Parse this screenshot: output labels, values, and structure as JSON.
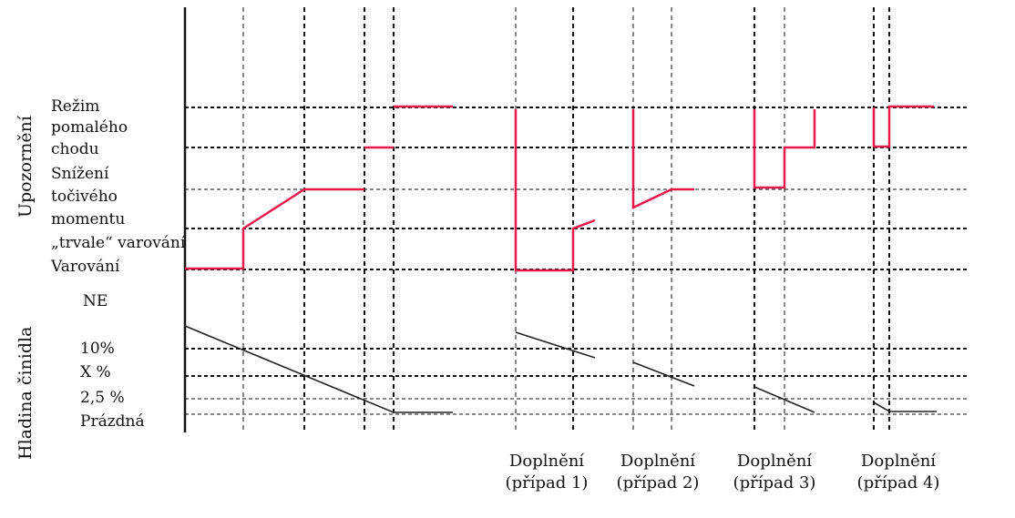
{
  "axes": {
    "upper_title": "Upozornění",
    "lower_title": "Hladina činidla"
  },
  "upper_levels": {
    "l1": "Režim",
    "l2": "pomalého",
    "l3": "chodu",
    "l4": "Snížení",
    "l5": "točivého",
    "l6": "momentu",
    "l7": "„trvale“ varování",
    "l8": "Varování",
    "l9": "NE"
  },
  "lower_levels": {
    "p10": "10%",
    "px": "X  %",
    "p25": "2,5  %",
    "empty": "Prázdná"
  },
  "cases": [
    {
      "title": "Doplnění",
      "sub": "(případ  1)"
    },
    {
      "title": "Doplnění",
      "sub": "(případ  2)"
    },
    {
      "title": "Doplnění",
      "sub": "(případ  3)"
    },
    {
      "title": "Doplnění",
      "sub": "(případ  4)"
    }
  ],
  "colors": {
    "warning_trace": "#e8174b",
    "level_trace": "#222222",
    "grid": "#111111"
  }
}
